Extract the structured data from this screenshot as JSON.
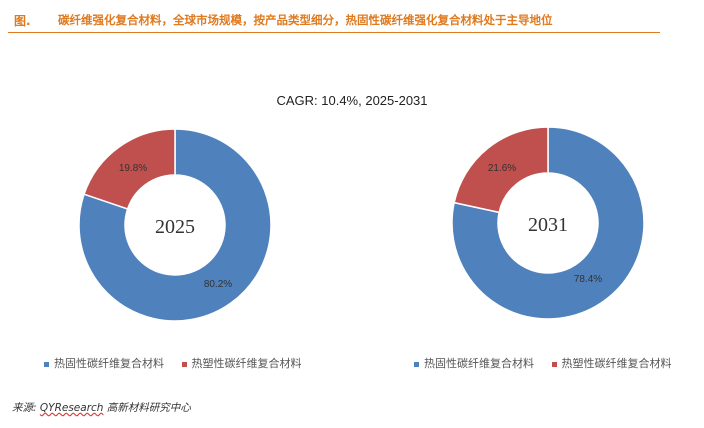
{
  "figure": {
    "label": "图.",
    "title": "碳纤维强化复合材料，全球市场规模，按产品类型细分，热固性碳纤维强化复合材料处于主导地位"
  },
  "cagr_text": "CAGR:   10.4%, 2025-2031",
  "source": {
    "prefix": "来源:",
    "org": "QYResearch",
    "suffix": " 高新材料研究中心"
  },
  "colors": {
    "thermoset": "#4f81bd",
    "thermoplastic": "#c0504d",
    "accent": "#e07a1f"
  },
  "chart_data": [
    {
      "type": "pie",
      "donut": true,
      "center_label": "2025",
      "categories": [
        "热固性碳纤维复合材料",
        "热塑性碳纤维复合材料"
      ],
      "values": [
        80.2,
        19.8
      ],
      "value_labels": [
        "80.2%",
        "19.8%"
      ],
      "colors": [
        "#4f81bd",
        "#c0504d"
      ],
      "legend": {
        "position": "bottom",
        "entries": [
          "热固性碳纤维复合材料",
          "热塑性碳纤维复合材料"
        ]
      }
    },
    {
      "type": "pie",
      "donut": true,
      "center_label": "2031",
      "categories": [
        "热固性碳纤维复合材料",
        "热塑性碳纤维复合材料"
      ],
      "values": [
        78.4,
        21.6
      ],
      "value_labels": [
        "78.4%",
        "21.6%"
      ],
      "colors": [
        "#4f81bd",
        "#c0504d"
      ],
      "legend": {
        "position": "bottom",
        "entries": [
          "热固性碳纤维复合材料",
          "热塑性碳纤维复合材料"
        ]
      }
    }
  ]
}
